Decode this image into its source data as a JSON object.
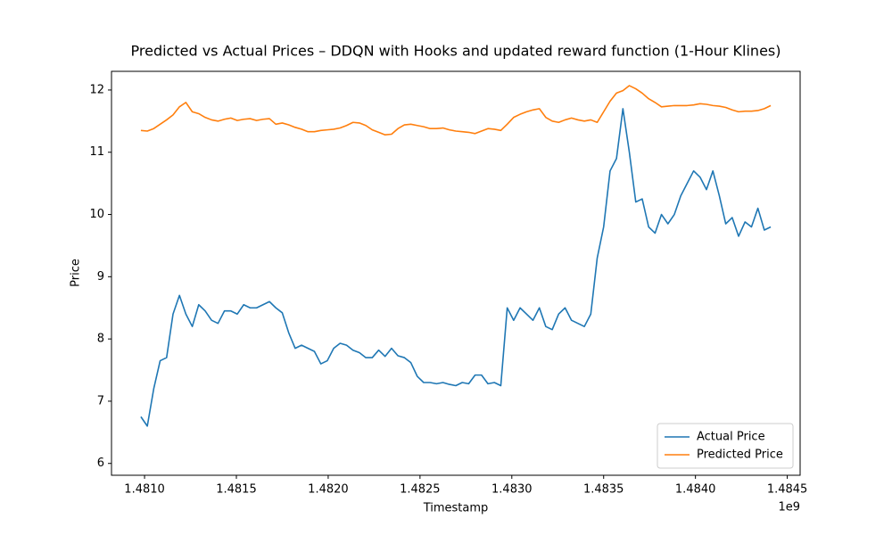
{
  "chart_data": {
    "type": "line",
    "title": "Predicted vs Actual Prices – DDQN with Hooks and updated reward function (1-Hour Klines)",
    "x_label": "Timestamp",
    "y_label": "Price",
    "x_offset_label": "1e9",
    "x": [
      1480980000,
      1481015000,
      1481050000,
      1481085000,
      1481120000,
      1481155000,
      1481190000,
      1481225000,
      1481260000,
      1481295000,
      1481330000,
      1481365000,
      1481400000,
      1481435000,
      1481470000,
      1481505000,
      1481540000,
      1481575000,
      1481610000,
      1481645000,
      1481680000,
      1481715000,
      1481750000,
      1481785000,
      1481820000,
      1481855000,
      1481890000,
      1481925000,
      1481960000,
      1481995000,
      1482030000,
      1482065000,
      1482100000,
      1482135000,
      1482170000,
      1482205000,
      1482240000,
      1482275000,
      1482310000,
      1482345000,
      1482380000,
      1482415000,
      1482450000,
      1482485000,
      1482520000,
      1482555000,
      1482590000,
      1482625000,
      1482660000,
      1482695000,
      1482730000,
      1482765000,
      1482800000,
      1482835000,
      1482870000,
      1482905000,
      1482940000,
      1482975000,
      1483010000,
      1483045000,
      1483080000,
      1483115000,
      1483150000,
      1483185000,
      1483220000,
      1483255000,
      1483290000,
      1483325000,
      1483360000,
      1483395000,
      1483430000,
      1483465000,
      1483500000,
      1483535000,
      1483570000,
      1483605000,
      1483640000,
      1483675000,
      1483710000,
      1483745000,
      1483780000,
      1483815000,
      1483850000,
      1483885000,
      1483920000,
      1483955000,
      1483990000,
      1484025000,
      1484060000,
      1484095000,
      1484130000,
      1484165000,
      1484200000,
      1484235000,
      1484270000,
      1484305000,
      1484340000,
      1484375000,
      1484410000
    ],
    "series": [
      {
        "name": "Actual Price",
        "color": "#1f77b4",
        "values": [
          6.75,
          6.6,
          7.2,
          7.65,
          7.7,
          8.4,
          8.7,
          8.4,
          8.2,
          8.55,
          8.45,
          8.3,
          8.25,
          8.45,
          8.45,
          8.4,
          8.55,
          8.5,
          8.5,
          8.55,
          8.6,
          8.5,
          8.42,
          8.1,
          7.85,
          7.9,
          7.85,
          7.8,
          7.6,
          7.65,
          7.85,
          7.93,
          7.9,
          7.82,
          7.78,
          7.7,
          7.7,
          7.82,
          7.72,
          7.85,
          7.73,
          7.7,
          7.62,
          7.4,
          7.3,
          7.3,
          7.28,
          7.3,
          7.27,
          7.25,
          7.3,
          7.28,
          7.42,
          7.42,
          7.28,
          7.3,
          7.25,
          8.5,
          8.3,
          8.5,
          8.4,
          8.3,
          8.5,
          8.2,
          8.15,
          8.4,
          8.5,
          8.3,
          8.25,
          8.2,
          8.4,
          9.3,
          9.8,
          10.7,
          10.9,
          11.7,
          11.0,
          10.2,
          10.25,
          9.8,
          9.7,
          10.0,
          9.85,
          10.0,
          10.3,
          10.5,
          10.7,
          10.6,
          10.4,
          10.7,
          10.3,
          9.85,
          9.95,
          9.65,
          9.88,
          9.8,
          10.1,
          9.75,
          9.8
        ]
      },
      {
        "name": "Predicted Price",
        "color": "#ff7f0e",
        "values": [
          11.35,
          11.34,
          11.38,
          11.45,
          11.52,
          11.6,
          11.73,
          11.8,
          11.65,
          11.62,
          11.56,
          11.52,
          11.5,
          11.53,
          11.55,
          11.51,
          11.53,
          11.54,
          11.51,
          11.53,
          11.54,
          11.45,
          11.47,
          11.44,
          11.4,
          11.37,
          11.33,
          11.33,
          11.35,
          11.36,
          11.37,
          11.39,
          11.43,
          11.48,
          11.47,
          11.43,
          11.36,
          11.32,
          11.28,
          11.29,
          11.38,
          11.44,
          11.45,
          11.43,
          11.41,
          11.38,
          11.38,
          11.39,
          11.36,
          11.34,
          11.33,
          11.32,
          11.3,
          11.34,
          11.38,
          11.37,
          11.35,
          11.45,
          11.56,
          11.61,
          11.65,
          11.68,
          11.7,
          11.56,
          11.5,
          11.48,
          11.52,
          11.55,
          11.52,
          11.5,
          11.52,
          11.48,
          11.65,
          11.82,
          11.95,
          11.99,
          12.07,
          12.02,
          11.95,
          11.86,
          11.8,
          11.73,
          11.74,
          11.75,
          11.75,
          11.75,
          11.76,
          11.78,
          11.77,
          11.75,
          11.74,
          11.72,
          11.68,
          11.65,
          11.66,
          11.66,
          11.67,
          11.7,
          11.75
        ]
      }
    ],
    "xlim": [
      1480820000,
      1484570000
    ],
    "ylim": [
      5.81,
      12.3
    ],
    "xticks": [
      {
        "value": 1481000000,
        "label": "1.4810"
      },
      {
        "value": 1481500000,
        "label": "1.4815"
      },
      {
        "value": 1482000000,
        "label": "1.4820"
      },
      {
        "value": 1482500000,
        "label": "1.4825"
      },
      {
        "value": 1483000000,
        "label": "1.4830"
      },
      {
        "value": 1483500000,
        "label": "1.4835"
      },
      {
        "value": 1484000000,
        "label": "1.4840"
      },
      {
        "value": 1484500000,
        "label": "1.4845"
      }
    ],
    "yticks": [
      6,
      7,
      8,
      9,
      10,
      11,
      12
    ],
    "legend": "lower right"
  }
}
